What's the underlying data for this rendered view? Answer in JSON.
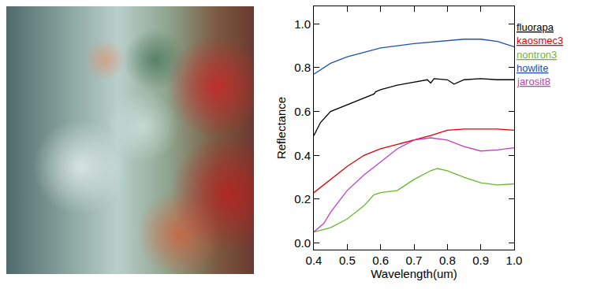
{
  "chart_data": {
    "type": "line",
    "x_label": "Wavelength(um)",
    "y_label": "Reflectance",
    "xlim": [
      0.4,
      1.0
    ],
    "xticks": [
      0.4,
      0.5,
      0.6,
      0.7,
      0.8,
      0.9,
      {
        "value": 1,
        "label": "1.0"
      }
    ],
    "ylim": [
      -0.03,
      1.08
    ],
    "yticks": [
      {
        "value": 0,
        "label": "0.0"
      },
      0.2,
      0.4,
      0.6,
      0.8,
      {
        "value": 1,
        "label": "1.0"
      }
    ],
    "grid": false,
    "series": [
      {
        "name": "fluorapa",
        "color": "#000000",
        "x": [
          0.4,
          0.42,
          0.45,
          0.5,
          0.55,
          0.58,
          0.585,
          0.6,
          0.65,
          0.7,
          0.74,
          0.75,
          0.76,
          0.8,
          0.82,
          0.85,
          0.9,
          0.95,
          1.0
        ],
        "values": [
          0.49,
          0.55,
          0.6,
          0.63,
          0.66,
          0.68,
          0.69,
          0.7,
          0.72,
          0.735,
          0.745,
          0.73,
          0.75,
          0.745,
          0.725,
          0.745,
          0.75,
          0.745,
          0.745
        ]
      },
      {
        "name": "kaosmec3",
        "color": "#e00000",
        "x": [
          0.4,
          0.45,
          0.5,
          0.55,
          0.6,
          0.65,
          0.7,
          0.75,
          0.8,
          0.85,
          0.9,
          0.95,
          1.0
        ],
        "values": [
          0.23,
          0.29,
          0.35,
          0.4,
          0.43,
          0.45,
          0.47,
          0.49,
          0.515,
          0.52,
          0.52,
          0.52,
          0.515
        ]
      },
      {
        "name": "nontron3",
        "color": "#6ab82c",
        "x": [
          0.4,
          0.45,
          0.5,
          0.55,
          0.58,
          0.6,
          0.65,
          0.7,
          0.75,
          0.77,
          0.8,
          0.85,
          0.9,
          0.95,
          1.0
        ],
        "values": [
          0.05,
          0.07,
          0.11,
          0.17,
          0.22,
          0.23,
          0.24,
          0.29,
          0.33,
          0.34,
          0.33,
          0.3,
          0.275,
          0.265,
          0.27
        ]
      },
      {
        "name": "howlite",
        "color": "#2050b0",
        "x": [
          0.4,
          0.45,
          0.5,
          0.55,
          0.6,
          0.7,
          0.8,
          0.85,
          0.9,
          0.95,
          0.97,
          1.0
        ],
        "values": [
          0.77,
          0.82,
          0.85,
          0.87,
          0.89,
          0.91,
          0.925,
          0.93,
          0.93,
          0.92,
          0.91,
          0.895
        ]
      },
      {
        "name": "jarosit8",
        "color": "#c040c0",
        "x": [
          0.4,
          0.43,
          0.45,
          0.5,
          0.55,
          0.6,
          0.65,
          0.7,
          0.75,
          0.8,
          0.85,
          0.9,
          0.95,
          1.0
        ],
        "values": [
          0.05,
          0.09,
          0.14,
          0.24,
          0.31,
          0.37,
          0.43,
          0.47,
          0.48,
          0.47,
          0.44,
          0.42,
          0.425,
          0.435
        ]
      }
    ]
  }
}
